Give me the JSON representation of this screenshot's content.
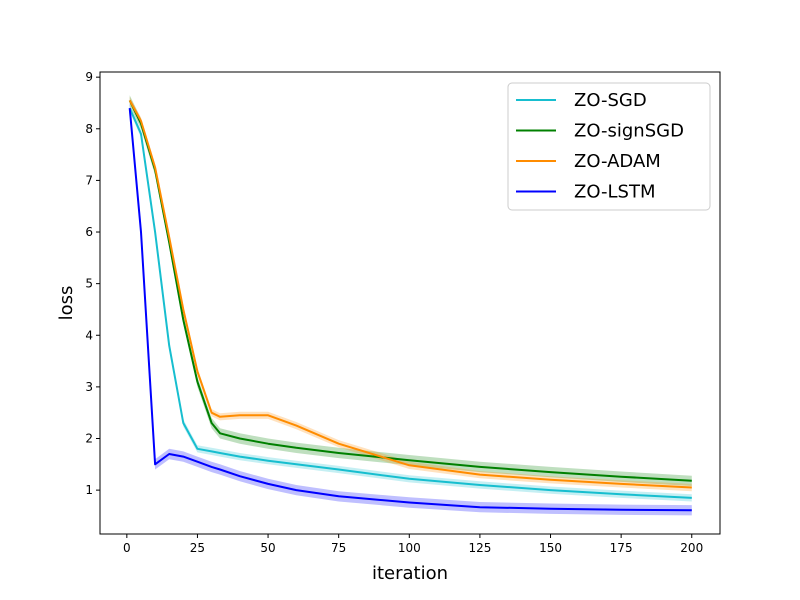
{
  "chart_data": {
    "type": "line",
    "xlabel": "iteration",
    "ylabel": "loss",
    "xlim": [
      -9.5,
      210
    ],
    "ylim": [
      0.15,
      9.1
    ],
    "xticks": [
      0,
      25,
      50,
      75,
      100,
      125,
      150,
      175,
      200
    ],
    "yticks": [
      1,
      2,
      3,
      4,
      5,
      6,
      7,
      8,
      9
    ],
    "grid": false,
    "legend_position": "top-right",
    "x": [
      1,
      5,
      10,
      15,
      20,
      25,
      30,
      33,
      40,
      50,
      60,
      75,
      100,
      125,
      150,
      175,
      200
    ],
    "series": [
      {
        "name": "ZO-SGD",
        "color": "#17becf",
        "values": [
          8.4,
          7.9,
          6.0,
          3.8,
          2.3,
          1.8,
          1.75,
          1.72,
          1.65,
          1.57,
          1.5,
          1.4,
          1.22,
          1.1,
          1.0,
          0.92,
          0.85
        ],
        "band": 0.07
      },
      {
        "name": "ZO-signSGD",
        "color": "#008000",
        "values": [
          8.55,
          8.1,
          7.2,
          5.8,
          4.3,
          3.1,
          2.3,
          2.1,
          2.0,
          1.9,
          1.82,
          1.72,
          1.58,
          1.45,
          1.35,
          1.26,
          1.18
        ],
        "band": 0.1
      },
      {
        "name": "ZO-ADAM",
        "color": "#ff8c00",
        "values": [
          8.55,
          8.15,
          7.25,
          5.9,
          4.5,
          3.3,
          2.5,
          2.42,
          2.45,
          2.45,
          2.25,
          1.9,
          1.48,
          1.3,
          1.2,
          1.12,
          1.05
        ],
        "band": 0.07
      },
      {
        "name": "ZO-LSTM",
        "color": "#0000ff",
        "values": [
          8.4,
          6.0,
          1.5,
          1.7,
          1.65,
          1.55,
          1.45,
          1.4,
          1.27,
          1.12,
          1.0,
          0.88,
          0.76,
          0.67,
          0.64,
          0.62,
          0.61
        ],
        "band": 0.1
      }
    ]
  }
}
